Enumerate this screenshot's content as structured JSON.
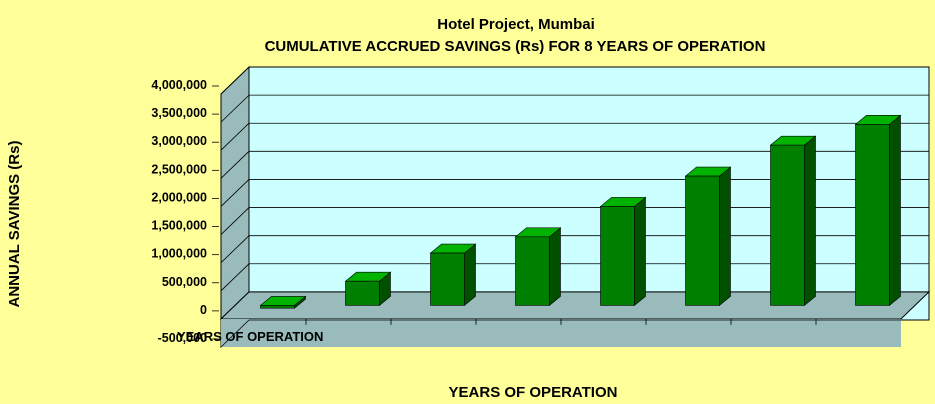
{
  "chart_data": {
    "type": "bar",
    "title": "Hotel Project, Mumbai",
    "subtitle": "CUMULATIVE ACCRUED SAVINGS (Rs) FOR 8 YEARS OF OPERATION",
    "xlabel": "YEARS OF OPERATION",
    "ylabel": "ANNUAL SAVINGS (Rs)",
    "category_axis_label": "YEARS OF OPERATION",
    "categories": [
      "",
      "",
      "",
      "",
      "",
      "",
      "",
      ""
    ],
    "values": [
      -50000,
      430000,
      930000,
      1220000,
      1760000,
      2300000,
      2850000,
      3220000
    ],
    "ylim": [
      -500000,
      4000000
    ],
    "yticks": [
      "-500,000",
      "0",
      "500,000",
      "1,000,000",
      "1,500,000",
      "2,000,000",
      "2,500,000",
      "3,000,000",
      "3,500,000",
      "4,000,000"
    ],
    "grid": true,
    "colors": {
      "background": "#ffff99",
      "back_wall": "#ccffff",
      "side_wall": "#99bbbb",
      "floor": "#99bbbb",
      "bar_front": "#008000",
      "bar_top": "#00b300",
      "bar_side": "#005000"
    }
  }
}
